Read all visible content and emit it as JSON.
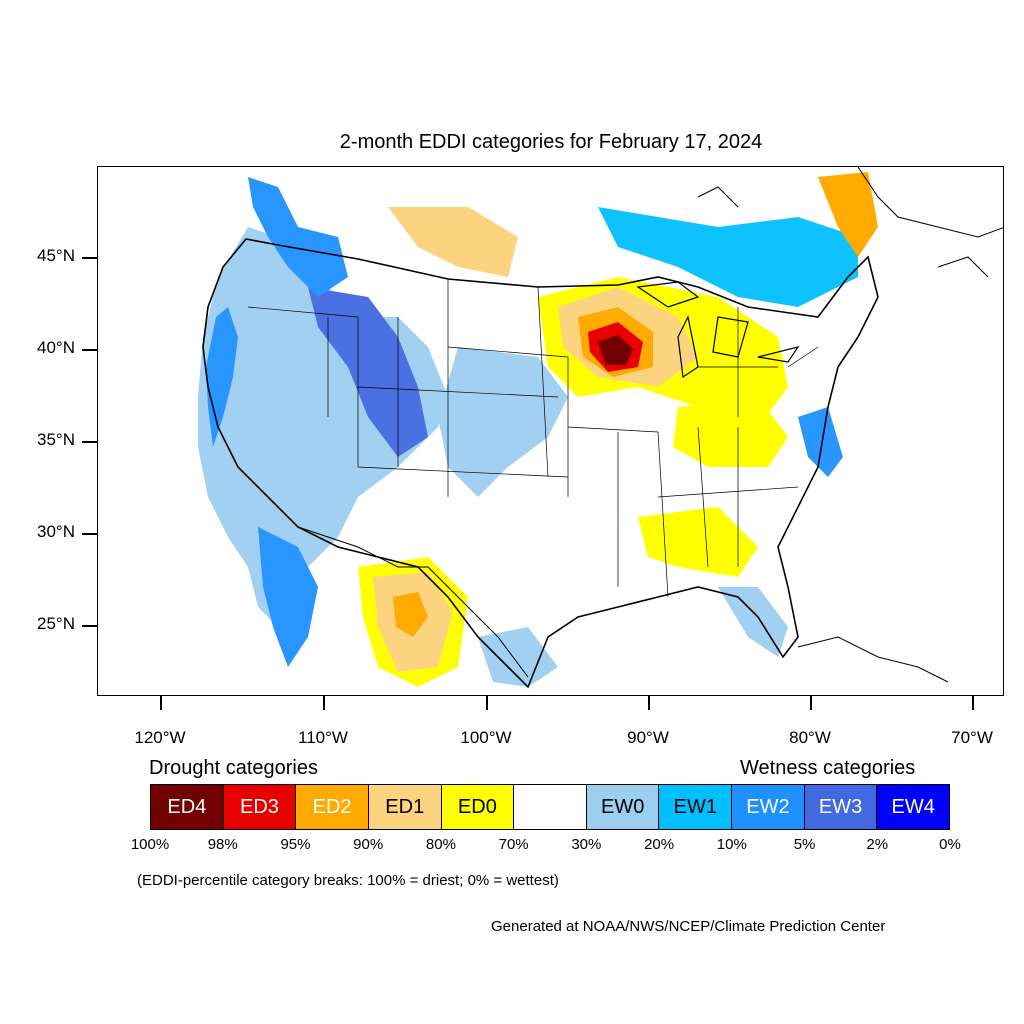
{
  "title": "2-month EDDI categories for February 17, 2024",
  "map": {
    "projection": "lambert-conformal (approx.)",
    "region": "Contiguous United States",
    "lat_labels": [
      "45°N",
      "40°N",
      "35°N",
      "30°N",
      "25°N"
    ],
    "lon_labels": [
      "120°W",
      "110°W",
      "100°W",
      "90°W",
      "80°W",
      "70°W"
    ]
  },
  "legend": {
    "drought_heading": "Drought categories",
    "wetness_heading": "Wetness categories",
    "categories": [
      {
        "label": "ED4",
        "color": "#730000",
        "text_color": "#ffffff"
      },
      {
        "label": "ED3",
        "color": "#e60000",
        "text_color": "#ffffff"
      },
      {
        "label": "ED2",
        "color": "#ffaa00",
        "text_color": "#ffffff"
      },
      {
        "label": "ED1",
        "color": "#fcd37f",
        "text_color": "#000000"
      },
      {
        "label": "ED0",
        "color": "#ffff00",
        "text_color": "#000000"
      },
      {
        "label": "",
        "color": "#ffffff",
        "text_color": "#000000"
      },
      {
        "label": "EW0",
        "color": "#9ccef0",
        "text_color": "#000000"
      },
      {
        "label": "EW1",
        "color": "#00bfff",
        "text_color": "#000000"
      },
      {
        "label": "EW2",
        "color": "#1e90ff",
        "text_color": "#ffffff"
      },
      {
        "label": "EW3",
        "color": "#4169e1",
        "text_color": "#ffffff"
      },
      {
        "label": "EW4",
        "color": "#0000ff",
        "text_color": "#ffffff"
      }
    ],
    "breaks": [
      "100%",
      "98%",
      "95%",
      "90%",
      "80%",
      "70%",
      "30%",
      "20%",
      "10%",
      "5%",
      "2%",
      "0%"
    ]
  },
  "note": "(EDDI-percentile category breaks: 100% = driest; 0% = wettest)",
  "credit": "Generated at NOAA/NWS/NCEP/Climate Prediction Center"
}
